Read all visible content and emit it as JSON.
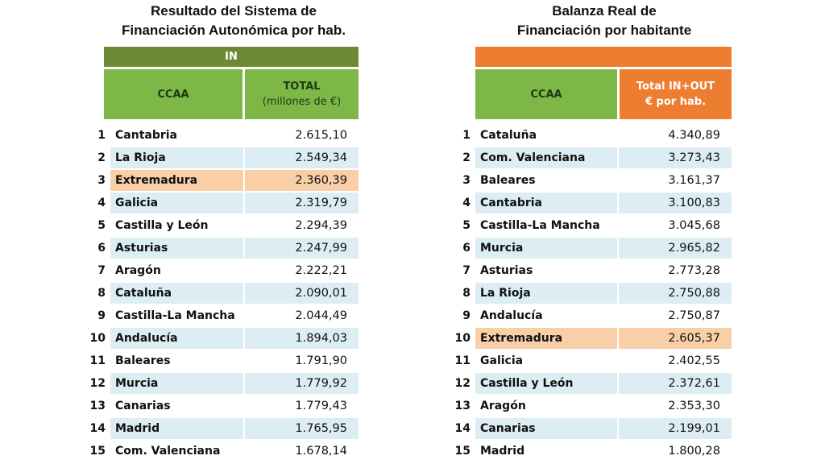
{
  "left": {
    "title_line1": "Resultado del Sistema de",
    "title_line2": "Financiación Autonómica por hab.",
    "group_header": "IN",
    "col_name": "CCAA",
    "col_value_line1": "TOTAL",
    "col_value_line2": "(millones de €)",
    "highlight_rank": 3,
    "rows": [
      {
        "rank": "1",
        "name": "Cantabria",
        "value": "2.615,10"
      },
      {
        "rank": "2",
        "name": "La Rioja",
        "value": "2.549,34"
      },
      {
        "rank": "3",
        "name": "Extremadura",
        "value": "2.360,39"
      },
      {
        "rank": "4",
        "name": "Galicia",
        "value": "2.319,79"
      },
      {
        "rank": "5",
        "name": "Castilla y León",
        "value": "2.294,39"
      },
      {
        "rank": "6",
        "name": "Asturias",
        "value": "2.247,99"
      },
      {
        "rank": "7",
        "name": "Aragón",
        "value": "2.222,21"
      },
      {
        "rank": "8",
        "name": "Cataluña",
        "value": "2.090,01"
      },
      {
        "rank": "9",
        "name": "Castilla-La Mancha",
        "value": "2.044,49"
      },
      {
        "rank": "10",
        "name": "Andalucía",
        "value": "1.894,03"
      },
      {
        "rank": "11",
        "name": "Baleares",
        "value": "1.791,90"
      },
      {
        "rank": "12",
        "name": "Murcia",
        "value": "1.779,92"
      },
      {
        "rank": "13",
        "name": "Canarias",
        "value": "1.779,43"
      },
      {
        "rank": "14",
        "name": "Madrid",
        "value": "1.765,95"
      },
      {
        "rank": "15",
        "name": "Com. Valenciana",
        "value": "1.678,14"
      }
    ]
  },
  "right": {
    "title_line1": "Balanza Real de",
    "title_line2": "Financiación por habitante",
    "col_name": "CCAA",
    "col_value_line1": "Total IN+OUT",
    "col_value_line2": "€ por hab.",
    "highlight_rank": 10,
    "rows": [
      {
        "rank": "1",
        "name": "Cataluña",
        "value": "4.340,89"
      },
      {
        "rank": "2",
        "name": "Com. Valenciana",
        "value": "3.273,43"
      },
      {
        "rank": "3",
        "name": "Baleares",
        "value": "3.161,37"
      },
      {
        "rank": "4",
        "name": "Cantabria",
        "value": "3.100,83"
      },
      {
        "rank": "5",
        "name": "Castilla-La Mancha",
        "value": "3.045,68"
      },
      {
        "rank": "6",
        "name": "Murcia",
        "value": "2.965,82"
      },
      {
        "rank": "7",
        "name": "Asturias",
        "value": "2.773,28"
      },
      {
        "rank": "8",
        "name": "La Rioja",
        "value": "2.750,88"
      },
      {
        "rank": "9",
        "name": "Andalucía",
        "value": "2.750,87"
      },
      {
        "rank": "10",
        "name": "Extremadura",
        "value": "2.605,37"
      },
      {
        "rank": "11",
        "name": "Galicia",
        "value": "2.402,55"
      },
      {
        "rank": "12",
        "name": "Castilla y León",
        "value": "2.372,61"
      },
      {
        "rank": "13",
        "name": "Aragón",
        "value": "2.353,30"
      },
      {
        "rank": "14",
        "name": "Canarias",
        "value": "2.199,01"
      },
      {
        "rank": "15",
        "name": "Madrid",
        "value": "1.800,28"
      }
    ]
  },
  "colors": {
    "in_bar": "#6b8a33",
    "header_green": "#7db847",
    "orange": "#ed7d31",
    "highlight": "#f9cfa8",
    "stripe": "#dcedf4"
  }
}
